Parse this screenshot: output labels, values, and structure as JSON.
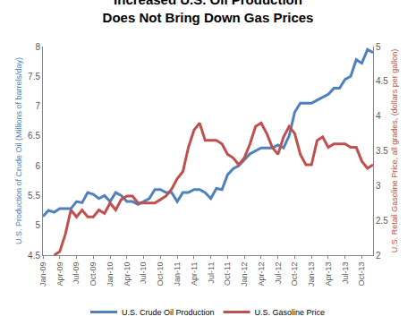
{
  "chart_data": {
    "type": "line",
    "title": "Increased U.S. Oil Production Does Not Bring Down Gas Prices",
    "y_label": "U.S. Production of Crude Oil (Millions of barrels/day)",
    "y2_label": "U.S. Retail Gasoline Price, all grades, (dollars per gallon)",
    "categories": [
      "Jan-09",
      null,
      null,
      "Apr-09",
      null,
      null,
      "Jul-09",
      null,
      null,
      "Oct-09",
      null,
      null,
      "Jan-10",
      null,
      null,
      "Apr-10",
      null,
      null,
      "Jul-10",
      null,
      null,
      "Oct-10",
      null,
      null,
      "Jan-11",
      null,
      null,
      "Apr-11",
      null,
      null,
      "Jul-11",
      null,
      null,
      "Oct-11",
      null,
      null,
      "Jan-12",
      null,
      null,
      "Apr-12",
      null,
      null,
      "Jul-12",
      null,
      null,
      "Oct-12",
      null,
      null,
      "Jan-13",
      null,
      null,
      "Apr-13",
      null,
      null,
      "Jul-13",
      null,
      null,
      "Oct-13",
      null,
      null
    ],
    "series": [
      {
        "name": "U.S. Crude Oil Production",
        "color": "#4f81bd",
        "values": [
          5.15,
          5.25,
          5.22,
          5.28,
          5.28,
          5.28,
          5.4,
          5.38,
          5.55,
          5.52,
          5.45,
          5.5,
          5.4,
          5.55,
          5.5,
          5.4,
          5.4,
          5.35,
          5.4,
          5.45,
          5.6,
          5.6,
          5.55,
          5.55,
          5.4,
          5.55,
          5.55,
          5.6,
          5.6,
          5.55,
          5.45,
          5.62,
          5.6,
          5.85,
          5.95,
          6.0,
          6.1,
          6.2,
          6.25,
          6.3,
          6.3,
          6.3,
          6.35,
          6.3,
          6.5,
          6.9,
          7.05,
          7.05,
          7.05,
          7.1,
          7.15,
          7.2,
          7.3,
          7.3,
          7.45,
          7.5,
          7.78,
          7.72,
          7.95,
          7.9
        ]
      },
      {
        "name": "U.S. Gasoline Price",
        "color": "#c0504d",
        "axis": "y2",
        "values": [
          null,
          null,
          2.0,
          2.05,
          2.3,
          2.65,
          2.55,
          2.65,
          2.55,
          2.55,
          2.65,
          2.6,
          2.75,
          2.65,
          2.8,
          2.85,
          2.85,
          2.75,
          2.75,
          2.75,
          2.75,
          2.8,
          2.85,
          2.95,
          3.1,
          3.2,
          3.55,
          3.8,
          3.9,
          3.65,
          3.65,
          3.65,
          3.6,
          3.45,
          3.4,
          3.3,
          3.4,
          3.6,
          3.85,
          3.9,
          3.75,
          3.55,
          3.45,
          3.7,
          3.85,
          3.75,
          3.45,
          3.3,
          3.3,
          3.65,
          3.7,
          3.55,
          3.6,
          3.6,
          3.6,
          3.55,
          3.55,
          3.35,
          3.25,
          3.3
        ]
      }
    ],
    "ylim": [
      4.5,
      8
    ],
    "yticks": [
      4.5,
      5,
      5.5,
      6,
      6.5,
      7,
      7.5,
      8
    ],
    "y2lim": [
      2,
      5
    ],
    "y2ticks": [
      2,
      2.5,
      3,
      3.5,
      4,
      4.5,
      5
    ],
    "grid": false,
    "legend": "bottom"
  }
}
